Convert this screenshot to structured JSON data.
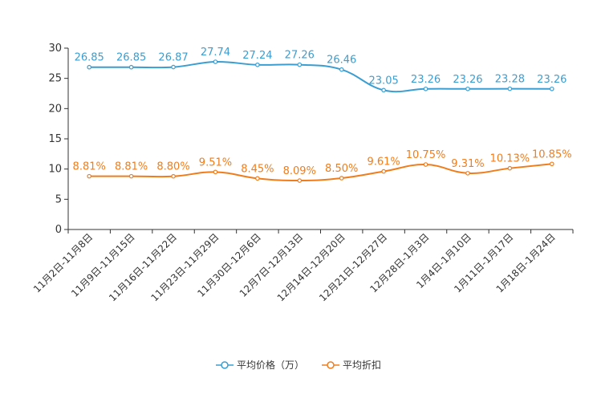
{
  "chart_data": {
    "type": "line",
    "title": "",
    "xlabel": "",
    "ylabel": "",
    "ylim": [
      0,
      30
    ],
    "yticks": [
      "0",
      "5",
      "10",
      "15",
      "20",
      "25",
      "30"
    ],
    "categories": [
      "11月2日-11月8日",
      "11月9日-11月15日",
      "11月16日-11月22日",
      "11月23日-11月29日",
      "11月30日-12月6日",
      "12月7日-12月13日",
      "12月14日-12月20日",
      "12月21日-12月27日",
      "12月28日-1月3日",
      "1月4日-1月10日",
      "1月11日-1月17日",
      "1月18日-1月24日"
    ],
    "series": [
      {
        "name": "平均价格（万）",
        "color": "#3a9ed1",
        "values": [
          26.85,
          26.85,
          26.87,
          27.74,
          27.24,
          27.26,
          26.46,
          23.05,
          23.26,
          23.26,
          23.28,
          23.26
        ],
        "labels": [
          "26.85",
          "26.85",
          "26.87",
          "27.74",
          "27.24",
          "27.26",
          "26.46",
          "23.05",
          "23.26",
          "23.26",
          "23.28",
          "23.26"
        ]
      },
      {
        "name": "平均折扣",
        "color": "#f07d1c",
        "values": [
          8.81,
          8.81,
          8.8,
          9.51,
          8.45,
          8.09,
          8.5,
          9.61,
          10.75,
          9.31,
          10.13,
          10.85
        ],
        "labels": [
          "8.81%",
          "8.81%",
          "8.80%",
          "9.51%",
          "8.45%",
          "8.09%",
          "8.50%",
          "9.61%",
          "10.75%",
          "9.31%",
          "10.13%",
          "10.85%"
        ]
      }
    ],
    "legend_position": "bottom-center"
  }
}
